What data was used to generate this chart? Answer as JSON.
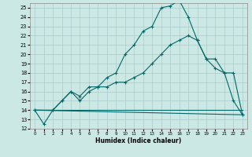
{
  "xlabel": "Humidex (Indice chaleur)",
  "bg_color": "#cce8e4",
  "grid_color": "#aacccc",
  "line_color": "#006868",
  "xlim": [
    -0.5,
    23.5
  ],
  "ylim": [
    12,
    25.5
  ],
  "yticks": [
    12,
    13,
    14,
    15,
    16,
    17,
    18,
    19,
    20,
    21,
    22,
    23,
    24,
    25
  ],
  "xticks": [
    0,
    1,
    2,
    3,
    4,
    5,
    6,
    7,
    8,
    9,
    10,
    11,
    12,
    13,
    14,
    15,
    16,
    17,
    18,
    19,
    20,
    21,
    22,
    23
  ],
  "line1_x": [
    0,
    1,
    2,
    3,
    4,
    5,
    6,
    7,
    8,
    9,
    10,
    11,
    12,
    13,
    14,
    15,
    16,
    17,
    18,
    19,
    20,
    21,
    22,
    23
  ],
  "line1_y": [
    14,
    12.5,
    14,
    15,
    16,
    15.5,
    16.5,
    16.5,
    17.5,
    18,
    20,
    21,
    22.5,
    23,
    25,
    25.2,
    25.8,
    24,
    21.5,
    19.5,
    18.5,
    18,
    15,
    13.5
  ],
  "line2_x": [
    0,
    2,
    3,
    4,
    5,
    6,
    7,
    8,
    9,
    10,
    11,
    12,
    13,
    14,
    15,
    16,
    17,
    18,
    19,
    20,
    21,
    22,
    23
  ],
  "line2_y": [
    14,
    14,
    15,
    16,
    15,
    16,
    16.5,
    16.5,
    17,
    17,
    17.5,
    18,
    19,
    20,
    21,
    21.5,
    22,
    21.5,
    19.5,
    19.5,
    18,
    18,
    13.5
  ],
  "line3_x": [
    0,
    23
  ],
  "line3_y": [
    14,
    13.5
  ],
  "line4_x": [
    0,
    23
  ],
  "line4_y": [
    14,
    14
  ]
}
